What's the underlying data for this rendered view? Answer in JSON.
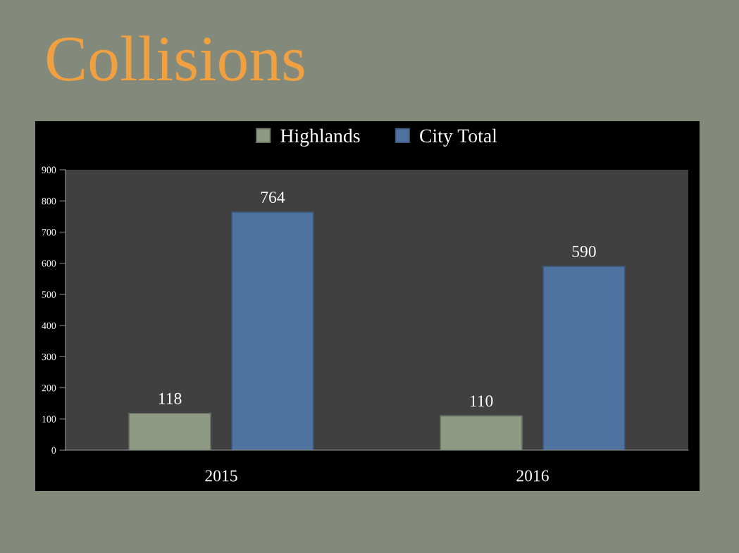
{
  "chart_data": {
    "type": "bar",
    "title": "Collisions",
    "categories": [
      "2015",
      "2016"
    ],
    "series": [
      {
        "name": "Highlands",
        "color": "#8e9a83",
        "values": [
          118,
          110
        ]
      },
      {
        "name": "City Total",
        "color": "#4f73a0",
        "values": [
          764,
          590
        ]
      }
    ],
    "ylim": [
      0,
      900
    ],
    "yticks": [
      0,
      100,
      200,
      300,
      400,
      500,
      600,
      700,
      800,
      900
    ],
    "data_labels": true,
    "legend": "top",
    "grid": false
  }
}
